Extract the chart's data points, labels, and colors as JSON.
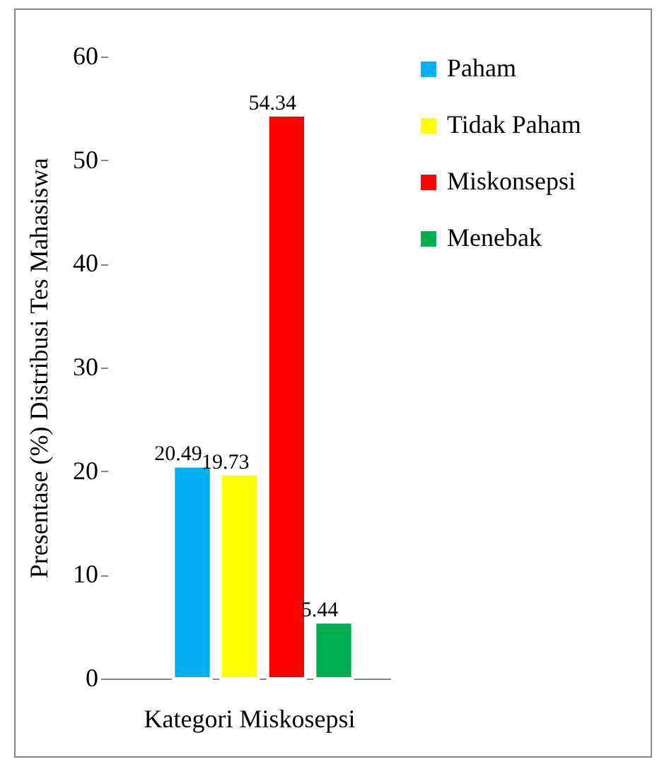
{
  "chart_data": {
    "type": "bar",
    "xlabel": "Kategori  Miskosepsi",
    "ylabel": "Presentase (%) Distribusi Tes Mahasiswa",
    "categories": [
      null
    ],
    "series": [
      {
        "name": "Paham",
        "color": "#00b0f0",
        "values": [
          20.49
        ]
      },
      {
        "name": "Tidak Paham",
        "color": "#ffff00",
        "values": [
          19.73
        ]
      },
      {
        "name": "Miskonsepsi",
        "color": "#ff0000",
        "values": [
          54.34
        ]
      },
      {
        "name": "Menebak",
        "color": "#00b050",
        "values": [
          5.44
        ]
      }
    ],
    "ylim": [
      0,
      60
    ],
    "yticks": [
      0,
      10,
      20,
      30,
      40,
      50,
      60
    ],
    "data_labels": true,
    "legend": "right",
    "tick_labels": "y"
  }
}
